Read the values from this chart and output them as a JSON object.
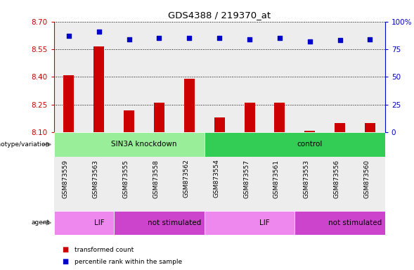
{
  "title": "GDS4388 / 219370_at",
  "samples": [
    "GSM873559",
    "GSM873563",
    "GSM873555",
    "GSM873558",
    "GSM873562",
    "GSM873554",
    "GSM873557",
    "GSM873561",
    "GSM873553",
    "GSM873556",
    "GSM873560"
  ],
  "bar_values": [
    8.41,
    8.565,
    8.22,
    8.26,
    8.39,
    8.18,
    8.26,
    8.26,
    8.11,
    8.15,
    8.15
  ],
  "percentile_values": [
    87,
    91,
    84,
    85,
    85,
    85,
    84,
    85,
    82,
    83,
    84
  ],
  "ylim_left": [
    8.1,
    8.7
  ],
  "ylim_right": [
    0,
    100
  ],
  "yticks_left": [
    8.1,
    8.25,
    8.4,
    8.55,
    8.7
  ],
  "yticks_right": [
    0,
    25,
    50,
    75,
    100
  ],
  "bar_color": "#cc0000",
  "dot_color": "#0000cc",
  "bar_width": 0.35,
  "col_bg_color": "#cccccc",
  "groups": {
    "genotype": [
      {
        "label": "SIN3A knockdown",
        "start": 0,
        "end": 5,
        "color": "#99ee99"
      },
      {
        "label": "control",
        "start": 5,
        "end": 11,
        "color": "#33cc55"
      }
    ],
    "agent": [
      {
        "label": "LIF",
        "start": 0,
        "end": 2,
        "color": "#ee88ee"
      },
      {
        "label": "not stimulated",
        "start": 2,
        "end": 5,
        "color": "#cc44cc"
      },
      {
        "label": "LIF",
        "start": 5,
        "end": 8,
        "color": "#ee88ee"
      },
      {
        "label": "not stimulated",
        "start": 8,
        "end": 11,
        "color": "#cc44cc"
      }
    ]
  },
  "legend_items": [
    {
      "label": "transformed count",
      "color": "#cc0000"
    },
    {
      "label": "percentile rank within the sample",
      "color": "#0000cc"
    }
  ],
  "tick_color_left": "#cc0000",
  "tick_color_right": "#0000cc"
}
